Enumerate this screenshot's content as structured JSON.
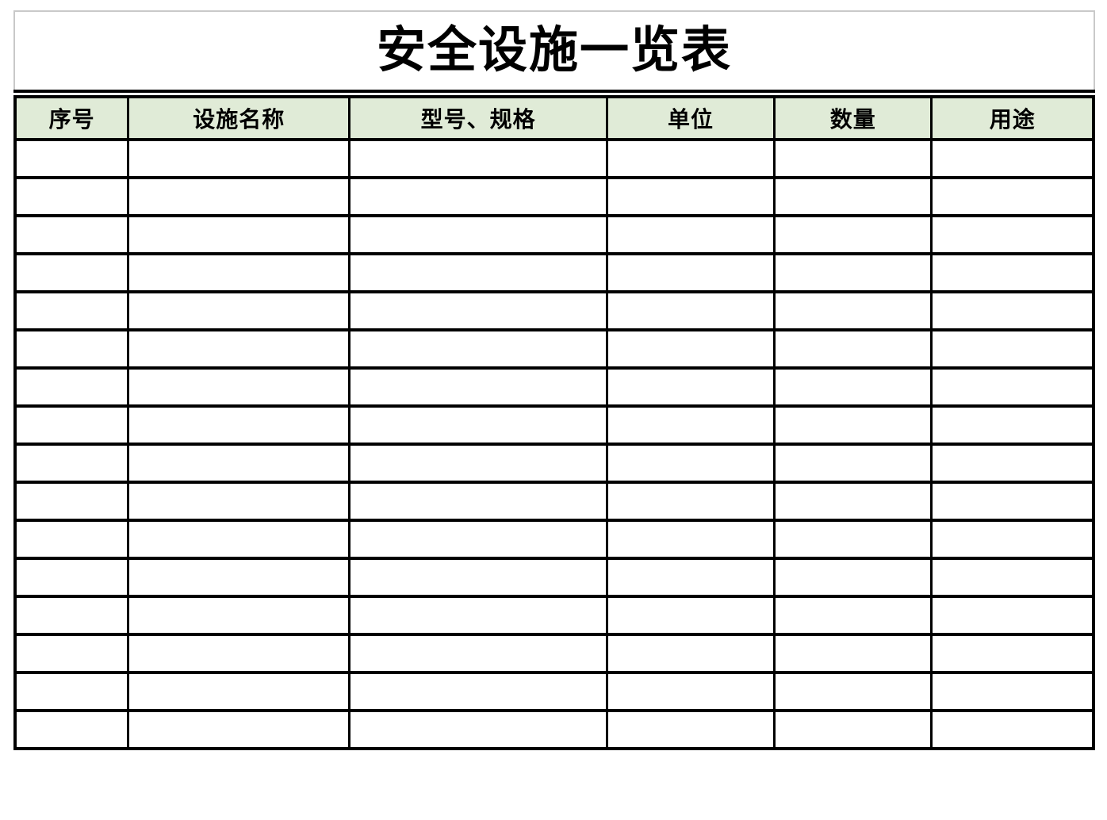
{
  "title": "安全设施一览表",
  "table": {
    "columns": [
      {
        "id": "serial-number",
        "label": "序号"
      },
      {
        "id": "facility-name",
        "label": "设施名称"
      },
      {
        "id": "model-spec",
        "label": "型号、规格"
      },
      {
        "id": "unit",
        "label": "单位"
      },
      {
        "id": "quantity",
        "label": "数量"
      },
      {
        "id": "purpose",
        "label": "用途"
      }
    ],
    "rows": [
      [
        "",
        "",
        "",
        "",
        "",
        ""
      ],
      [
        "",
        "",
        "",
        "",
        "",
        ""
      ],
      [
        "",
        "",
        "",
        "",
        "",
        ""
      ],
      [
        "",
        "",
        "",
        "",
        "",
        ""
      ],
      [
        "",
        "",
        "",
        "",
        "",
        ""
      ],
      [
        "",
        "",
        "",
        "",
        "",
        ""
      ],
      [
        "",
        "",
        "",
        "",
        "",
        ""
      ],
      [
        "",
        "",
        "",
        "",
        "",
        ""
      ],
      [
        "",
        "",
        "",
        "",
        "",
        ""
      ],
      [
        "",
        "",
        "",
        "",
        "",
        ""
      ],
      [
        "",
        "",
        "",
        "",
        "",
        ""
      ],
      [
        "",
        "",
        "",
        "",
        "",
        ""
      ],
      [
        "",
        "",
        "",
        "",
        "",
        ""
      ],
      [
        "",
        "",
        "",
        "",
        "",
        ""
      ],
      [
        "",
        "",
        "",
        "",
        "",
        ""
      ],
      [
        "",
        "",
        "",
        "",
        "",
        ""
      ]
    ]
  },
  "colors": {
    "header_bg": "#e0ebd7",
    "border": "#000000",
    "title_box_border": "#c9c9c9",
    "page_bg": "#ffffff",
    "text": "#000000"
  }
}
